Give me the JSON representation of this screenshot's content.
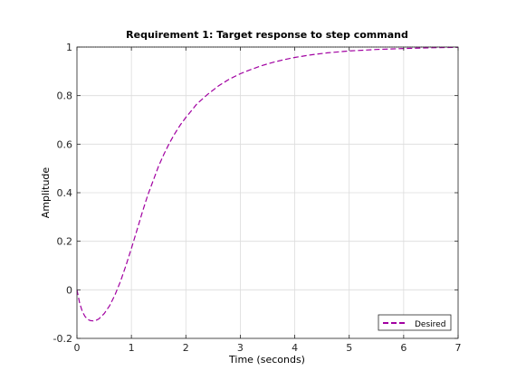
{
  "chart_data": {
    "type": "line",
    "title": "Requirement 1: Target response to step command",
    "xlabel": "Time (seconds)",
    "ylabel": "Amplitude",
    "xlim": [
      0,
      7
    ],
    "ylim": [
      -0.2,
      1
    ],
    "grid": true,
    "legend_location": "bottom-right",
    "x_ticks": [
      0,
      1,
      2,
      3,
      4,
      5,
      6,
      7
    ],
    "x_tick_labels": [
      "0",
      "1",
      "2",
      "3",
      "4",
      "5",
      "6",
      "7"
    ],
    "y_ticks": [
      -0.2,
      0,
      0.2,
      0.4,
      0.6,
      0.8,
      1
    ],
    "y_tick_labels": [
      "-0.2",
      "0",
      "0.2",
      "0.4",
      "0.6",
      "0.8",
      "1"
    ],
    "series": [
      {
        "name": "Desired",
        "color": "#a100a1",
        "dash": "dashed",
        "x": [
          0,
          0.05,
          0.1,
          0.15,
          0.2,
          0.25,
          0.3,
          0.35,
          0.4,
          0.5,
          0.6,
          0.7,
          0.8,
          0.9,
          1.0,
          1.1,
          1.2,
          1.3,
          1.4,
          1.5,
          1.6,
          1.7,
          1.8,
          1.9,
          2.0,
          2.2,
          2.4,
          2.6,
          2.8,
          3.0,
          3.2,
          3.4,
          3.6,
          3.8,
          4.0,
          4.3,
          4.6,
          5.0,
          5.5,
          6.0,
          6.5,
          7.0
        ],
        "y": [
          0,
          -0.055,
          -0.09,
          -0.11,
          -0.122,
          -0.127,
          -0.128,
          -0.126,
          -0.12,
          -0.098,
          -0.065,
          -0.02,
          0.035,
          0.1,
          0.17,
          0.245,
          0.32,
          0.39,
          0.45,
          0.51,
          0.56,
          0.605,
          0.645,
          0.68,
          0.71,
          0.765,
          0.805,
          0.84,
          0.868,
          0.89,
          0.908,
          0.924,
          0.937,
          0.948,
          0.957,
          0.968,
          0.976,
          0.984,
          0.99,
          0.994,
          0.997,
          0.999
        ]
      }
    ],
    "reference_line": {
      "y": 1,
      "color": "#000000",
      "dash": "dotted"
    }
  }
}
